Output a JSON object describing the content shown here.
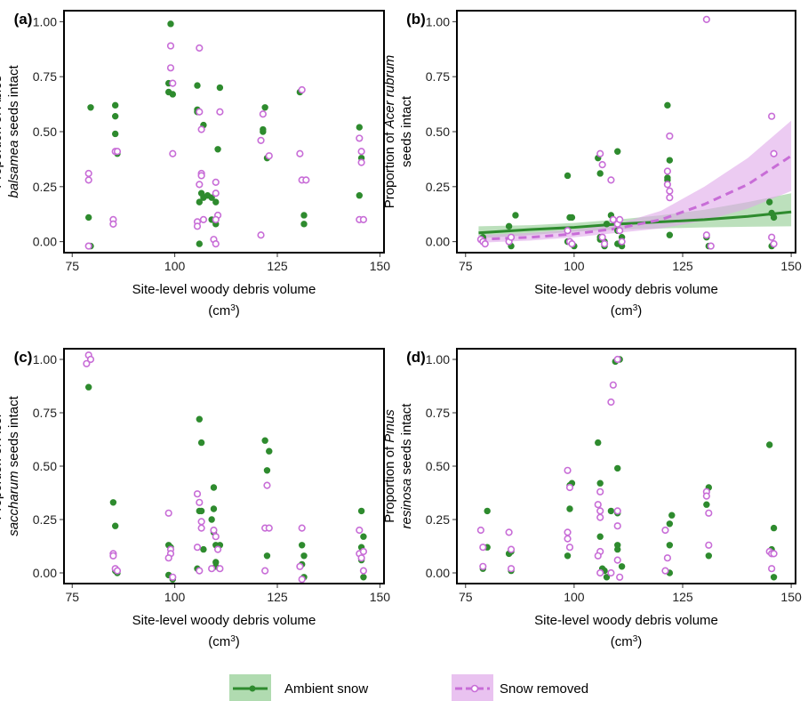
{
  "chart_data": [
    {
      "type": "scatter",
      "panel_label": "(a)",
      "ylabel": [
        [
          {
            "text": "Proportion of "
          },
          {
            "text": "Abies",
            "italic": true
          }
        ],
        [
          {
            "text": "balsamea",
            "italic": true
          },
          {
            "text": " seeds intact"
          }
        ]
      ],
      "xlabel": "Site-level woody debris volume",
      "xlabel_unit": [
        "(cm",
        "3",
        ")"
      ],
      "xlim": [
        73,
        151
      ],
      "xticks": [
        75,
        100,
        125,
        150
      ],
      "ylim": [
        -0.05,
        1.05
      ],
      "yticks": [
        {
          "value": 0,
          "label": "0.00"
        },
        {
          "value": 0.25,
          "label": "0.25"
        },
        {
          "value": 0.5,
          "label": "0.50"
        },
        {
          "value": 0.75,
          "label": "0.75"
        },
        {
          "value": 1,
          "label": "1.00"
        }
      ],
      "series": [
        {
          "name": "Ambient snow",
          "color": "#2e8b2e",
          "marker": "filled",
          "x": [
            79,
            79.5,
            79.5,
            85.5,
            85.5,
            85.5,
            86,
            99,
            98.5,
            98.5,
            99.5,
            105.5,
            105.5,
            105.5,
            107,
            106,
            106.5,
            107,
            106,
            108,
            109,
            109,
            110,
            110.5,
            111,
            110,
            122,
            121.5,
            121.5,
            122.5,
            130.5,
            130.5,
            131.5,
            131.5,
            145,
            145,
            145.5,
            146
          ],
          "values": [
            0.11,
            0.61,
            -0.02,
            0.62,
            0.57,
            0.49,
            0.4,
            0.99,
            0.72,
            0.68,
            0.67,
            0.71,
            0.6,
            0.59,
            0.53,
            0.18,
            0.22,
            0.2,
            -0.01,
            0.21,
            0.2,
            0.1,
            0.08,
            0.42,
            0.7,
            0.18,
            0.61,
            0.51,
            0.5,
            0.38,
            0.68,
            0.4,
            0.12,
            0.08,
            0.52,
            0.21,
            0.38,
            0.1
          ]
        },
        {
          "name": "Snow removed",
          "color": "#c86dd7",
          "marker": "open",
          "x": [
            79,
            79,
            79,
            85,
            85,
            85.5,
            86,
            99,
            99,
            99.5,
            99.5,
            106,
            106,
            106.5,
            106.5,
            106.5,
            106,
            105.5,
            105.5,
            107,
            109.5,
            110,
            110,
            110,
            110.5,
            110,
            111,
            121.5,
            121,
            121,
            123,
            130.5,
            131,
            131,
            132,
            145,
            145.5,
            145.5,
            145,
            146
          ],
          "values": [
            0.31,
            0.28,
            -0.02,
            0.1,
            0.08,
            0.41,
            0.41,
            0.79,
            0.89,
            0.72,
            0.4,
            0.88,
            0.59,
            0.51,
            0.31,
            0.3,
            0.26,
            0.09,
            0.07,
            0.1,
            0.01,
            -0.01,
            0.27,
            0.22,
            0.12,
            0.1,
            0.59,
            0.58,
            0.46,
            0.03,
            0.39,
            0.4,
            0.69,
            0.28,
            0.28,
            0.47,
            0.41,
            0.36,
            0.1,
            0.1
          ]
        }
      ]
    },
    {
      "type": "scatter",
      "panel_label": "(b)",
      "ylabel": [
        [
          {
            "text": "Proportion of "
          },
          {
            "text": "Acer rubrum",
            "italic": true
          }
        ],
        [
          {
            "text": "seeds intact"
          }
        ]
      ],
      "xlabel": "Site-level woody debris volume",
      "xlabel_unit": [
        "(cm",
        "3",
        ")"
      ],
      "xlim": [
        73,
        151
      ],
      "xticks": [
        75,
        100,
        125,
        150
      ],
      "ylim": [
        -0.05,
        1.05
      ],
      "yticks": [
        {
          "value": 0,
          "label": "0.00"
        },
        {
          "value": 0.25,
          "label": "0.25"
        },
        {
          "value": 0.5,
          "label": "0.50"
        },
        {
          "value": 0.75,
          "label": "0.75"
        },
        {
          "value": 1,
          "label": "1.00"
        }
      ],
      "series": [
        {
          "name": "Ambient snow",
          "color": "#2e8b2e",
          "marker": "filled",
          "x": [
            79,
            79.5,
            85,
            85,
            85.5,
            86.5,
            98.5,
            99,
            99.5,
            98.5,
            100,
            105.5,
            106,
            106,
            106,
            107,
            107,
            107.5,
            108.5,
            109.5,
            110,
            110,
            110,
            111,
            111,
            121.5,
            122,
            121.5,
            121.5,
            122,
            130.5,
            131,
            145,
            145.5,
            146,
            145.5
          ],
          "values": [
            0.02,
            -0.01,
            0.07,
            0,
            -0.02,
            0.12,
            0.3,
            0.11,
            0.11,
            0,
            -0.02,
            0.38,
            0.31,
            0.02,
            0.01,
            0,
            -0.02,
            0.08,
            0.12,
            0.09,
            0.41,
            0.05,
            -0.01,
            0.02,
            -0.02,
            0.62,
            0.37,
            0.29,
            0.28,
            0.03,
            0.02,
            -0.02,
            0.18,
            0.13,
            0.11,
            -0.02
          ],
          "fit": {
            "dashed": false,
            "band_color": "#8fcc8f",
            "x": [
              78,
              90,
              100,
              110,
              120,
              130,
              140,
              150
            ],
            "values": [
              0.04,
              0.055,
              0.065,
              0.08,
              0.09,
              0.1,
              0.115,
              0.135
            ],
            "lower": [
              0.015,
              0.03,
              0.045,
              0.055,
              0.06,
              0.065,
              0.068,
              0.07
            ],
            "upper": [
              0.07,
              0.075,
              0.085,
              0.1,
              0.12,
              0.145,
              0.18,
              0.22
            ]
          }
        },
        {
          "name": "Snow removed",
          "color": "#c86dd7",
          "marker": "open",
          "x": [
            78.5,
            79,
            79.5,
            85,
            85.5,
            98.5,
            99,
            99.5,
            106,
            106.5,
            106.5,
            107,
            108.5,
            109,
            110,
            110.5,
            110.5,
            111,
            121.5,
            121.5,
            122,
            122,
            122,
            130.5,
            130.5,
            131.5,
            145.5,
            146,
            145.5,
            146
          ],
          "values": [
            0.01,
            0,
            -0.01,
            0,
            0.02,
            0.05,
            0,
            -0.01,
            0.4,
            0.35,
            0.02,
            -0.01,
            0.28,
            0.1,
            0.08,
            0.1,
            0.05,
            0,
            0.32,
            0.26,
            0.48,
            0.23,
            0.2,
            1.01,
            0.03,
            -0.02,
            0.57,
            0.4,
            0.02,
            -0.01
          ],
          "fit": {
            "dashed": true,
            "band_color": "#dfa8ea",
            "x": [
              78,
              90,
              100,
              110,
              120,
              130,
              140,
              150
            ],
            "values": [
              0.01,
              0.02,
              0.035,
              0.06,
              0.1,
              0.17,
              0.26,
              0.39
            ],
            "lower": [
              -0.005,
              0.005,
              0.02,
              0.04,
              0.06,
              0.095,
              0.15,
              0.23
            ],
            "upper": [
              0.03,
              0.04,
              0.055,
              0.08,
              0.14,
              0.25,
              0.38,
              0.55
            ]
          }
        }
      ]
    },
    {
      "type": "scatter",
      "panel_label": "(c)",
      "ylabel": [
        [
          {
            "text": "Proportion of "
          },
          {
            "text": "Acer",
            "italic": true
          }
        ],
        [
          {
            "text": "saccharum",
            "italic": true
          },
          {
            "text": " seeds intact"
          }
        ]
      ],
      "xlabel": "Site-level woody debris volume",
      "xlabel_unit": [
        "(cm",
        "3",
        ")"
      ],
      "xlim": [
        73,
        151
      ],
      "xticks": [
        75,
        100,
        125,
        150
      ],
      "ylim": [
        -0.05,
        1.05
      ],
      "yticks": [
        {
          "value": 0,
          "label": "0.00"
        },
        {
          "value": 0.25,
          "label": "0.25"
        },
        {
          "value": 0.5,
          "label": "0.50"
        },
        {
          "value": 0.75,
          "label": "0.75"
        },
        {
          "value": 1,
          "label": "1.00"
        }
      ],
      "series": [
        {
          "name": "Ambient snow",
          "color": "#2e8b2e",
          "marker": "filled",
          "x": [
            78.5,
            79.5,
            79,
            85,
            85.5,
            85.5,
            86,
            98.5,
            99,
            98.5,
            99.5,
            106,
            106.5,
            106,
            106.5,
            107,
            105.5,
            109.5,
            109.5,
            109,
            109.5,
            110,
            111,
            110,
            110,
            122,
            123,
            122.5,
            122.5,
            131,
            131.5,
            131,
            131.5,
            145.5,
            146,
            145.5,
            145.5,
            146
          ],
          "values": [
            0.98,
            1,
            0.87,
            0.33,
            0.22,
            0.01,
            0,
            0.13,
            0.12,
            -0.01,
            -0.03,
            0.72,
            0.61,
            0.29,
            0.29,
            0.11,
            0.02,
            0.4,
            0.3,
            0.25,
            0.19,
            0.13,
            0.13,
            0.05,
            0.03,
            0.62,
            0.57,
            0.48,
            0.08,
            0.13,
            0.08,
            0.04,
            -0.02,
            0.29,
            0.17,
            0.12,
            0.06,
            -0.02
          ]
        },
        {
          "name": "Snow removed",
          "color": "#c86dd7",
          "marker": "open",
          "x": [
            79,
            79.5,
            78.5,
            85,
            85,
            85.5,
            86,
            98.5,
            99,
            99,
            98.5,
            99.5,
            105.5,
            106,
            106.5,
            106.5,
            105.5,
            106,
            109.5,
            110,
            110.5,
            109,
            111,
            122.5,
            122,
            123,
            122,
            131,
            130.5,
            131,
            145,
            145,
            146,
            145.5,
            146
          ],
          "values": [
            1.02,
            1,
            0.98,
            0.09,
            0.08,
            0.02,
            0.01,
            0.28,
            0.11,
            0.09,
            0.07,
            -0.02,
            0.37,
            0.33,
            0.24,
            0.21,
            0.12,
            0.01,
            0.2,
            0.17,
            0.11,
            0.02,
            0.02,
            0.41,
            0.21,
            0.21,
            0.01,
            0.21,
            0.03,
            -0.03,
            0.2,
            0.09,
            0.1,
            0.07,
            0.01
          ]
        }
      ]
    },
    {
      "type": "scatter",
      "panel_label": "(d)",
      "ylabel": [
        [
          {
            "text": "Proportion of "
          },
          {
            "text": "Pinus",
            "italic": true
          }
        ],
        [
          {
            "text": "resinosa",
            "italic": true
          },
          {
            "text": " seeds intact"
          }
        ]
      ],
      "xlabel": "Site-level woody debris volume",
      "xlabel_unit": [
        "(cm",
        "3",
        ")"
      ],
      "xlim": [
        73,
        151
      ],
      "xticks": [
        75,
        100,
        125,
        150
      ],
      "ylim": [
        -0.05,
        1.05
      ],
      "yticks": [
        {
          "value": 0,
          "label": "0.00"
        },
        {
          "value": 0.25,
          "label": "0.25"
        },
        {
          "value": 0.5,
          "label": "0.50"
        },
        {
          "value": 0.75,
          "label": "0.75"
        },
        {
          "value": 1,
          "label": "1.00"
        }
      ],
      "series": [
        {
          "name": "Ambient snow",
          "color": "#2e8b2e",
          "marker": "filled",
          "x": [
            79,
            80,
            80,
            85,
            85.5,
            85.5,
            99,
            99.5,
            99,
            98.5,
            105.5,
            106,
            106,
            106,
            106.5,
            107,
            108.5,
            109.5,
            110.5,
            110,
            110,
            110,
            110,
            111,
            107.5,
            122.5,
            122,
            122,
            122,
            130.5,
            131,
            131,
            131,
            145,
            146,
            145.5,
            146
          ],
          "values": [
            0.02,
            0.29,
            0.12,
            0.09,
            0.1,
            0.01,
            0.41,
            0.42,
            0.3,
            0.08,
            0.61,
            0.42,
            0.29,
            0.17,
            0.02,
            0.01,
            0.29,
            0.99,
            1,
            0.49,
            0.28,
            0.13,
            0.11,
            0.03,
            -0.02,
            0.27,
            0.23,
            0.13,
            0,
            0.32,
            0.4,
            0.28,
            0.08,
            0.6,
            0.21,
            0.11,
            -0.02
          ]
        },
        {
          "name": "Snow removed",
          "color": "#c86dd7",
          "marker": "open",
          "x": [
            78.5,
            79,
            79,
            85,
            85.5,
            85.5,
            98.5,
            99,
            98.5,
            98.5,
            99,
            105.5,
            106,
            106,
            106,
            106,
            105.5,
            106,
            108.5,
            109,
            110,
            110,
            110,
            110,
            110.5,
            108.5,
            121,
            121.5,
            121,
            130.5,
            130.5,
            131,
            131,
            145,
            145.5,
            145.5,
            146
          ],
          "values": [
            0.2,
            0.12,
            0.03,
            0.19,
            0.11,
            0.02,
            0.48,
            0.4,
            0.19,
            0.16,
            0.12,
            0.32,
            0.38,
            0.29,
            0.26,
            0.1,
            0.08,
            0,
            0.8,
            0.88,
            1,
            0.29,
            0.22,
            0.06,
            -0.02,
            0,
            0.2,
            0.07,
            0.01,
            0.38,
            0.36,
            0.13,
            0.28,
            0.1,
            0.09,
            0.02,
            0.09
          ]
        }
      ]
    }
  ]
}
